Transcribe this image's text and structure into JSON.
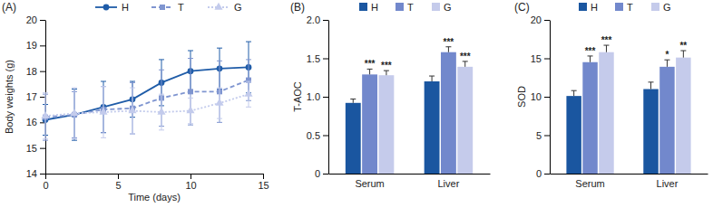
{
  "chart_data": [
    {
      "type": "line",
      "title": "(A)",
      "x_label": "Time (days)",
      "y_label": "Body weights (g)",
      "x": [
        0,
        2,
        4,
        6,
        8,
        10,
        12,
        14
      ],
      "xlim": [
        0,
        15
      ],
      "xticks": [
        0,
        5,
        10,
        15
      ],
      "ylim": [
        14,
        20
      ],
      "yticks": [
        14,
        15,
        16,
        17,
        18,
        19,
        20
      ],
      "grid": false,
      "legend": "top",
      "series": [
        {
          "name": "H",
          "color": "#1f5ca8",
          "marker": "circle",
          "line_style": "solid",
          "values": [
            16.1,
            16.3,
            16.6,
            16.9,
            17.55,
            18.0,
            18.1,
            18.15
          ],
          "errors": [
            0.6,
            1.0,
            1.0,
            0.7,
            0.9,
            0.8,
            0.8,
            1.0
          ]
        },
        {
          "name": "T",
          "color": "#7f95d0",
          "marker": "square",
          "line_style": "dashed",
          "values": [
            16.2,
            16.3,
            16.5,
            16.55,
            16.95,
            17.2,
            17.2,
            17.65
          ],
          "errors": [
            0.9,
            0.9,
            0.9,
            1.0,
            1.1,
            1.3,
            1.2,
            0.8
          ]
        },
        {
          "name": "G",
          "color": "#c3cbec",
          "marker": "triangle",
          "line_style": "dotted",
          "values": [
            16.25,
            16.35,
            16.4,
            16.45,
            16.4,
            16.45,
            16.75,
            17.1
          ],
          "errors": [
            0.9,
            1.0,
            1.0,
            0.9,
            0.7,
            0.5,
            0.6,
            0.5
          ]
        }
      ]
    },
    {
      "type": "bar",
      "title": "(B)",
      "y_label": "T-AOC",
      "categories": [
        "Serum",
        "Liver"
      ],
      "ylim": [
        0,
        2
      ],
      "yticks": [
        0,
        0.5,
        {
          "value": 1,
          "label": "1.0"
        },
        1.5,
        {
          "value": 2,
          "label": "2.0"
        }
      ],
      "grid": false,
      "legend": "top",
      "series": [
        {
          "name": "H",
          "color": "#1a56a0",
          "values": [
            0.92,
            1.2
          ],
          "errors": [
            0.05,
            0.07
          ]
        },
        {
          "name": "T",
          "color": "#7288cc",
          "values": [
            1.29,
            1.58
          ],
          "errors": [
            0.07,
            0.07
          ],
          "annotations": [
            "***",
            "***"
          ]
        },
        {
          "name": "G",
          "color": "#c5cbeb",
          "values": [
            1.28,
            1.39
          ],
          "errors": [
            0.06,
            0.07
          ],
          "annotations": [
            "***",
            "***"
          ]
        }
      ]
    },
    {
      "type": "bar",
      "title": "(C)",
      "y_label": "SOD",
      "categories": [
        "Serum",
        "Liver"
      ],
      "ylim": [
        0,
        20
      ],
      "yticks": [
        0,
        5,
        10,
        15,
        20
      ],
      "grid": false,
      "legend": "top",
      "series": [
        {
          "name": "H",
          "color": "#1a56a0",
          "values": [
            10.1,
            11.0
          ],
          "errors": [
            0.7,
            0.9
          ]
        },
        {
          "name": "T",
          "color": "#7288cc",
          "values": [
            14.5,
            13.9
          ],
          "errors": [
            0.8,
            0.9
          ],
          "annotations": [
            "***",
            "*"
          ]
        },
        {
          "name": "G",
          "color": "#c5cbeb",
          "values": [
            15.8,
            15.1
          ],
          "errors": [
            0.9,
            0.9
          ],
          "annotations": [
            "***",
            "**"
          ]
        }
      ]
    }
  ]
}
